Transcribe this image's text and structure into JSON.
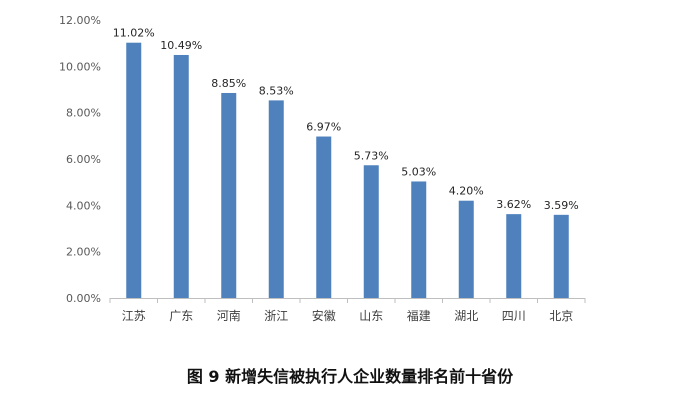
{
  "chart_data": {
    "type": "bar",
    "categories": [
      "江苏",
      "广东",
      "河南",
      "浙江",
      "安徽",
      "山东",
      "福建",
      "湖北",
      "四川",
      "北京"
    ],
    "values": [
      11.02,
      10.49,
      8.85,
      8.53,
      6.97,
      5.73,
      5.03,
      4.2,
      3.62,
      3.59
    ],
    "data_labels": [
      "11.02%",
      "10.49%",
      "8.85%",
      "8.53%",
      "6.97%",
      "5.73%",
      "5.03%",
      "4.20%",
      "3.62%",
      "3.59%"
    ],
    "yticks": [
      "0.00%",
      "2.00%",
      "4.00%",
      "6.00%",
      "8.00%",
      "10.00%",
      "12.00%"
    ],
    "ylim": [
      0,
      12
    ],
    "grid": false,
    "legend": "none",
    "bar_color": "#4f81bd",
    "title": "图 9  新增失信被执行人企业数量排名前十省份"
  }
}
